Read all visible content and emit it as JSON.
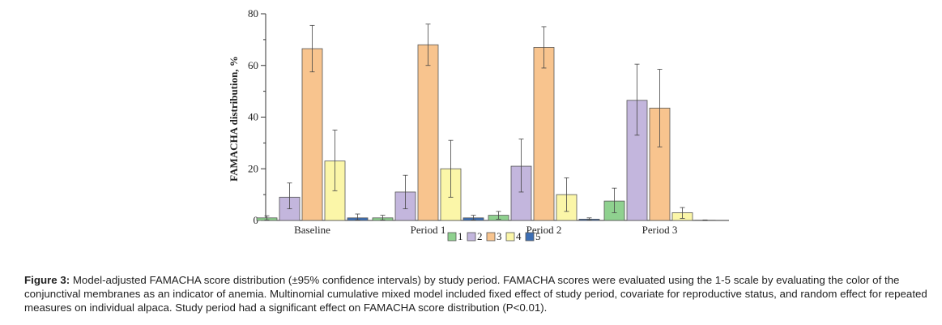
{
  "chart_data": {
    "type": "bar",
    "ylabel": "FAMACHA distribution, %",
    "ylim": [
      0,
      80
    ],
    "yticks": [
      0,
      20,
      40,
      60,
      80
    ],
    "categories": [
      "Baseline",
      "Period 1",
      "Period 2",
      "Period 3"
    ],
    "series": [
      {
        "name": "1",
        "color": "#8fd18f",
        "values": [
          1.0,
          1.0,
          2.0,
          7.5
        ],
        "ci_low": [
          0.2,
          0.2,
          0.5,
          3.0
        ],
        "ci_high": [
          1.8,
          2.0,
          3.5,
          12.5
        ]
      },
      {
        "name": "2",
        "color": "#c3b6dd",
        "values": [
          9.0,
          11.0,
          21.0,
          46.5
        ],
        "ci_low": [
          4.5,
          4.5,
          11.0,
          33.0
        ],
        "ci_high": [
          14.5,
          17.5,
          31.5,
          60.5
        ]
      },
      {
        "name": "3",
        "color": "#f8c48e",
        "values": [
          66.5,
          68.0,
          67.0,
          43.5
        ],
        "ci_low": [
          57.5,
          60.0,
          59.0,
          28.5
        ],
        "ci_high": [
          75.5,
          76.0,
          75.0,
          58.5
        ]
      },
      {
        "name": "4",
        "color": "#fbf6a8",
        "values": [
          23.0,
          20.0,
          10.0,
          3.0
        ],
        "ci_low": [
          11.5,
          9.0,
          3.5,
          0.8
        ],
        "ci_high": [
          35.0,
          31.0,
          16.5,
          5.0
        ]
      },
      {
        "name": "5",
        "color": "#3c6eb4",
        "values": [
          1.0,
          1.0,
          0.5,
          0.1
        ],
        "ci_low": [
          0.2,
          0.2,
          0.1,
          0.0
        ],
        "ci_high": [
          2.5,
          2.0,
          1.0,
          0.2
        ]
      }
    ],
    "legend_position": "bottom-center",
    "grid": false
  },
  "caption": {
    "label": "Figure 3:",
    "text": " Model-adjusted FAMACHA score distribution (±95% confidence intervals) by study period. FAMACHA scores were evaluated using the 1-5 scale by evaluating the color of the conjunctival membranes as an indicator of anemia. Multinomial cumulative mixed model included fixed effect of study period, covariate for reproductive status, and random effect for repeated measures on individual alpaca. Study period had a significant effect on FAMACHA score distribution (P<0.01)."
  }
}
